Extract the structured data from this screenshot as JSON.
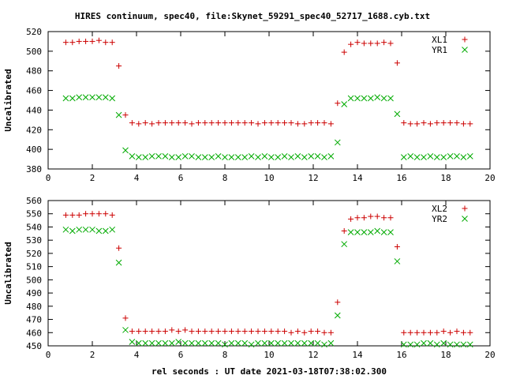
{
  "chart_data": [
    {
      "type": "scatter",
      "title": "HIRES continuum, spec40, file:Skynet_59291_spec40_52717_1688.cyb.txt",
      "xlabel": "",
      "ylabel": "Uncalibrated",
      "xlim": [
        0,
        20
      ],
      "ylim": [
        380,
        520
      ],
      "xticks": [
        0,
        2,
        4,
        6,
        8,
        10,
        12,
        14,
        16,
        18,
        20
      ],
      "yticks": [
        380,
        400,
        420,
        440,
        460,
        480,
        500,
        520
      ],
      "legend_position": "top-right",
      "series": [
        {
          "name": "XL1",
          "marker": "plus",
          "color": "#cc0000",
          "x": [
            0.8,
            1.1,
            1.4,
            1.7,
            2.0,
            2.3,
            2.6,
            2.9,
            3.2,
            3.5,
            3.8,
            4.1,
            4.4,
            4.7,
            5.0,
            5.3,
            5.6,
            5.9,
            6.2,
            6.5,
            6.8,
            7.1,
            7.4,
            7.7,
            8.0,
            8.3,
            8.6,
            8.9,
            9.2,
            9.5,
            9.8,
            10.1,
            10.4,
            10.7,
            11.0,
            11.3,
            11.6,
            11.9,
            12.2,
            12.5,
            12.8,
            13.1,
            13.4,
            13.7,
            14.0,
            14.3,
            14.6,
            14.9,
            15.2,
            15.5,
            15.8,
            16.1,
            16.4,
            16.7,
            17.0,
            17.3,
            17.6,
            17.9,
            18.2,
            18.5,
            18.8,
            19.1
          ],
          "y": [
            509,
            509,
            510,
            510,
            510,
            511,
            509,
            509,
            485,
            435,
            427,
            426,
            427,
            426,
            427,
            427,
            427,
            427,
            427,
            426,
            427,
            427,
            427,
            427,
            427,
            427,
            427,
            427,
            427,
            426,
            427,
            427,
            427,
            427,
            427,
            426,
            426,
            427,
            427,
            427,
            426,
            447,
            499,
            507,
            509,
            508,
            508,
            508,
            509,
            508,
            488,
            427,
            426,
            426,
            427,
            426,
            427,
            427,
            427,
            427,
            426,
            426
          ]
        },
        {
          "name": "YR1",
          "marker": "cross",
          "color": "#00aa00",
          "x": [
            0.8,
            1.1,
            1.4,
            1.7,
            2.0,
            2.3,
            2.6,
            2.9,
            3.2,
            3.5,
            3.8,
            4.1,
            4.4,
            4.7,
            5.0,
            5.3,
            5.6,
            5.9,
            6.2,
            6.5,
            6.8,
            7.1,
            7.4,
            7.7,
            8.0,
            8.3,
            8.6,
            8.9,
            9.2,
            9.5,
            9.8,
            10.1,
            10.4,
            10.7,
            11.0,
            11.3,
            11.6,
            11.9,
            12.2,
            12.5,
            12.8,
            13.1,
            13.4,
            13.7,
            14.0,
            14.3,
            14.6,
            14.9,
            15.2,
            15.5,
            15.8,
            16.1,
            16.4,
            16.7,
            17.0,
            17.3,
            17.6,
            17.9,
            18.2,
            18.5,
            18.8,
            19.1
          ],
          "y": [
            452,
            452,
            453,
            453,
            453,
            453,
            453,
            452,
            435,
            399,
            393,
            392,
            392,
            393,
            393,
            393,
            392,
            392,
            393,
            393,
            392,
            392,
            392,
            393,
            392,
            392,
            392,
            392,
            393,
            392,
            393,
            392,
            392,
            393,
            392,
            393,
            392,
            393,
            393,
            392,
            393,
            407,
            446,
            452,
            452,
            452,
            452,
            453,
            452,
            452,
            436,
            392,
            393,
            392,
            392,
            393,
            392,
            392,
            393,
            393,
            392,
            393
          ]
        }
      ]
    },
    {
      "type": "scatter",
      "title": "",
      "xlabel": "rel seconds : UT date 2021-03-18T07:38:02.300",
      "ylabel": "Uncalibrated",
      "xlim": [
        0,
        20
      ],
      "ylim": [
        450,
        560
      ],
      "xticks": [
        0,
        2,
        4,
        6,
        8,
        10,
        12,
        14,
        16,
        18,
        20
      ],
      "yticks": [
        450,
        460,
        470,
        480,
        490,
        500,
        510,
        520,
        530,
        540,
        550,
        560
      ],
      "legend_position": "top-right",
      "series": [
        {
          "name": "XL2",
          "marker": "plus",
          "color": "#cc0000",
          "x": [
            0.8,
            1.1,
            1.4,
            1.7,
            2.0,
            2.3,
            2.6,
            2.9,
            3.2,
            3.5,
            3.8,
            4.1,
            4.4,
            4.7,
            5.0,
            5.3,
            5.6,
            5.9,
            6.2,
            6.5,
            6.8,
            7.1,
            7.4,
            7.7,
            8.0,
            8.3,
            8.6,
            8.9,
            9.2,
            9.5,
            9.8,
            10.1,
            10.4,
            10.7,
            11.0,
            11.3,
            11.6,
            11.9,
            12.2,
            12.5,
            12.8,
            13.1,
            13.4,
            13.7,
            14.0,
            14.3,
            14.6,
            14.9,
            15.2,
            15.5,
            15.8,
            16.1,
            16.4,
            16.7,
            17.0,
            17.3,
            17.6,
            17.9,
            18.2,
            18.5,
            18.8,
            19.1
          ],
          "y": [
            549,
            549,
            549,
            550,
            550,
            550,
            550,
            549,
            524,
            471,
            461,
            461,
            461,
            461,
            461,
            461,
            462,
            461,
            462,
            461,
            461,
            461,
            461,
            461,
            461,
            461,
            461,
            461,
            461,
            461,
            461,
            461,
            461,
            461,
            460,
            461,
            460,
            461,
            461,
            460,
            460,
            483,
            537,
            546,
            547,
            547,
            548,
            548,
            547,
            547,
            525,
            460,
            460,
            460,
            460,
            460,
            460,
            461,
            460,
            461,
            460,
            460
          ]
        },
        {
          "name": "YR2",
          "marker": "cross",
          "color": "#00aa00",
          "x": [
            0.8,
            1.1,
            1.4,
            1.7,
            2.0,
            2.3,
            2.6,
            2.9,
            3.2,
            3.5,
            3.8,
            4.1,
            4.4,
            4.7,
            5.0,
            5.3,
            5.6,
            5.9,
            6.2,
            6.5,
            6.8,
            7.1,
            7.4,
            7.7,
            8.0,
            8.3,
            8.6,
            8.9,
            9.2,
            9.5,
            9.8,
            10.1,
            10.4,
            10.7,
            11.0,
            11.3,
            11.6,
            11.9,
            12.2,
            12.5,
            12.8,
            13.1,
            13.4,
            13.7,
            14.0,
            14.3,
            14.6,
            14.9,
            15.2,
            15.5,
            15.8,
            16.1,
            16.4,
            16.7,
            17.0,
            17.3,
            17.6,
            17.9,
            18.2,
            18.5,
            18.8,
            19.1
          ],
          "y": [
            538,
            537,
            538,
            538,
            538,
            537,
            537,
            538,
            513,
            462,
            453,
            452,
            452,
            452,
            452,
            452,
            452,
            453,
            452,
            452,
            452,
            452,
            452,
            452,
            451,
            452,
            452,
            452,
            451,
            452,
            452,
            452,
            452,
            452,
            452,
            452,
            452,
            452,
            452,
            451,
            452,
            473,
            527,
            536,
            536,
            536,
            536,
            537,
            536,
            536,
            514,
            451,
            451,
            451,
            452,
            452,
            451,
            452,
            451,
            451,
            451,
            451
          ]
        }
      ]
    }
  ]
}
